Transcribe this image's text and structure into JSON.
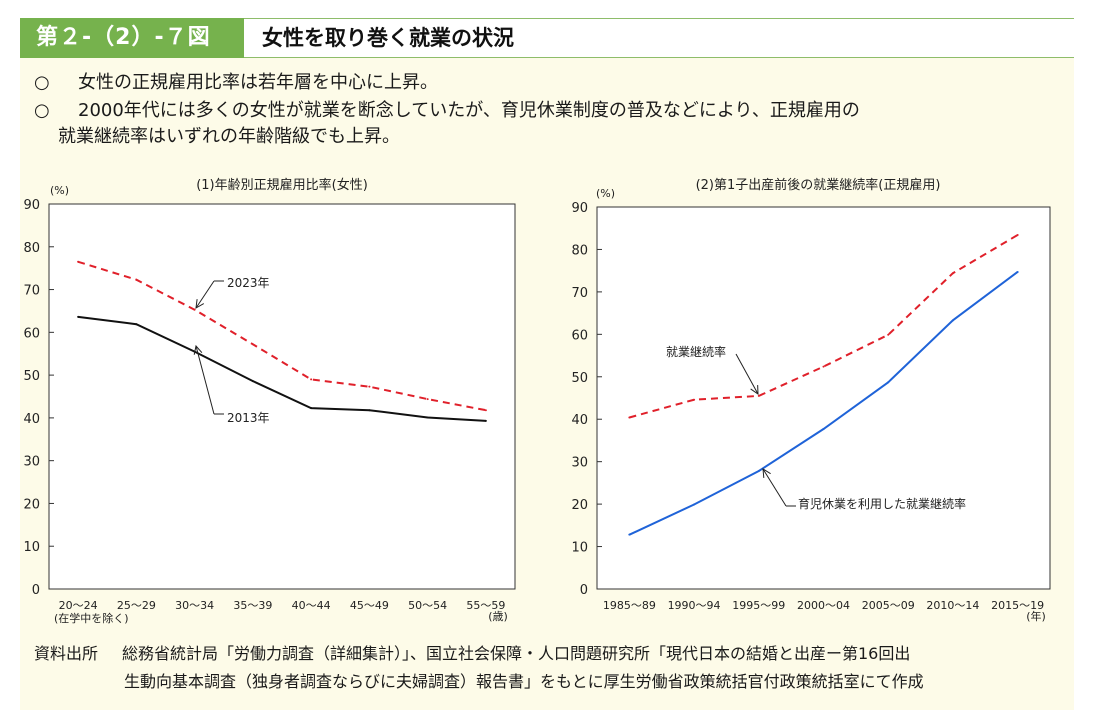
{
  "header": {
    "figure_label": "第２-（2）-７図",
    "title": "女性を取り巻く就業の状況"
  },
  "bullets": [
    {
      "mark": "○",
      "text": "女性の正規雇用比率は若年層を中心に上昇。"
    },
    {
      "mark": "○",
      "text": "2000年代には多くの女性が就業を断念していたが、育児休業制度の普及などにより、正規雇用の",
      "cont": "就業継続率はいずれの年齢階級でも上昇。"
    }
  ],
  "source": {
    "label": "資料出所",
    "line1": "総務省統計局「労働力調査（詳細集計）」、国立社会保障・人口問題研究所「現代日本の結婚と出産ー第16回出",
    "line2": "生動向基本調査（独身者調査ならびに夫婦調査）報告書」をもとに厚生労働省政策統括官付政策統括室にて作成"
  },
  "chart_data": [
    {
      "type": "line",
      "title": "(1)年齢別正規雇用比率(女性)",
      "y_unit": "(%)",
      "x_unit": "(歳)",
      "x_note": "(在学中を除く)",
      "categories": [
        "20～24",
        "25～29",
        "30～34",
        "35～39",
        "40～44",
        "45～49",
        "50～54",
        "55～59"
      ],
      "ylim": [
        0,
        90
      ],
      "yticks": [
        0,
        10,
        20,
        30,
        40,
        50,
        60,
        70,
        80,
        90
      ],
      "grid": false,
      "series": [
        {
          "name": "2023年",
          "color": "#e0202a",
          "dash": true,
          "values": [
            76.5,
            72.3,
            65.3,
            57.2,
            49.0,
            47.3,
            44.4,
            41.8
          ]
        },
        {
          "name": "2013年",
          "color": "#111111",
          "dash": false,
          "values": [
            63.6,
            61.9,
            55.5,
            48.6,
            42.3,
            41.8,
            40.1,
            39.3
          ]
        }
      ]
    },
    {
      "type": "line",
      "title": "(2)第1子出産前後の就業継続率(正規雇用)",
      "y_unit": "(%)",
      "x_unit": "(年)",
      "categories": [
        "1985～89",
        "1990～94",
        "1995～99",
        "2000～04",
        "2005～09",
        "2010～14",
        "2015～19"
      ],
      "ylim": [
        0,
        90
      ],
      "yticks": [
        0,
        10,
        20,
        30,
        40,
        50,
        60,
        70,
        80,
        90
      ],
      "grid": false,
      "series": [
        {
          "name": "就業継続率",
          "color": "#e0202a",
          "dash": true,
          "values": [
            40.4,
            44.6,
            45.5,
            52.4,
            59.9,
            74.4,
            83.4
          ]
        },
        {
          "name": "育児休業を利用した就業継続率",
          "color": "#1f63d8",
          "dash": false,
          "values": [
            12.8,
            19.9,
            27.8,
            37.7,
            48.7,
            63.3,
            74.7
          ]
        }
      ]
    }
  ]
}
